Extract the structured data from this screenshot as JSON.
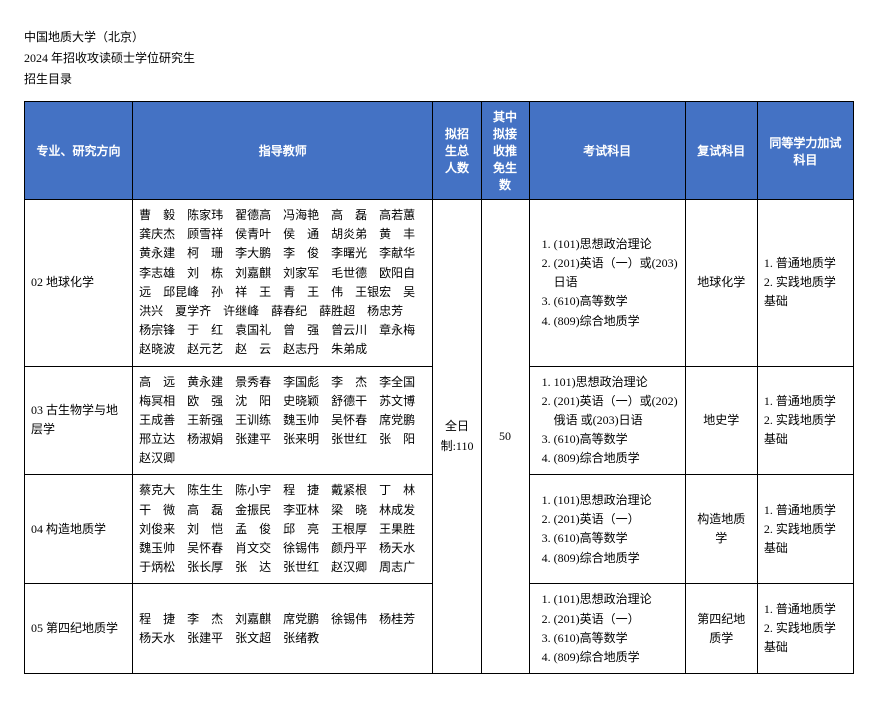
{
  "header": {
    "university": "中国地质大学（北京）",
    "year_line": "2024 年招收攻读硕士学位研究生",
    "catalog": "招生目录"
  },
  "table": {
    "columns": {
      "major": "专业、研究方向",
      "advisor": "指导教师",
      "plan": "拟招生总人数",
      "rec": "其中拟接收推免生数",
      "exam": "考试科目",
      "reexam": "复试科目",
      "equal": "同等学力加试科目"
    },
    "plan_total": "全日制:110",
    "rec_total": "50",
    "rows": [
      {
        "major": "02 地球化学",
        "advisors": "曹　毅　陈家玮　翟德高　冯海艳　高　磊　高若蕙　龚庆杰　顾雪祥　侯青叶　侯　通　胡炎弟　黄　丰　黄永建　柯　珊　李大鹏　李　俊　李曙光　李献华　李志雄　刘　栋　刘嘉麒　刘家军　毛世德　欧阳自远　邱昆峰　孙　祥　王　青　王　伟　王银宏　吴洪兴　夏学齐　许继峰　薛春纪　薛胜超　杨忠芳　杨宗锋　于　红　袁国礼　曾　强　曾云川　章永梅　赵晓波　赵元艺　赵　云　赵志丹　朱弟成",
        "exam": [
          "(101)思想政治理论",
          "(201)英语（一）或(203)日语",
          "(610)高等数学",
          "(809)综合地质学"
        ],
        "reexam": "地球化学",
        "equal": "1. 普通地质学\n2. 实践地质学基础"
      },
      {
        "major": "03 古生物学与地层学",
        "advisors": "高　远　黄永建　景秀春　李国彪　李　杰　李全国　梅冥相　欧　强　沈　阳　史晓颖　舒德干　苏文博　王成善　王新强　王训练　魏玉帅　吴怀春　席党鹏　邢立达　杨淑娟　张建平　张来明　张世红　张　阳　赵汉卿",
        "exam": [
          "101)思想政治理论",
          "(201)英语（一）或(202)俄语 或(203)日语",
          "(610)高等数学",
          "(809)综合地质学"
        ],
        "reexam": "地史学",
        "equal": "1. 普通地质学\n2. 实践地质学基础"
      },
      {
        "major": "04 构造地质学",
        "advisors": "蔡克大　陈生生　陈小宇　程　捷　戴紧根　丁　林　干　微　高　磊　金振民　李亚林　梁　晓　林成发　刘俊来　刘　恺　孟　俊　邱　亮　王根厚　王果胜　魏玉帅　吴怀春　肖文交　徐锡伟　颜丹平　杨天水　于炳松　张长厚　张　达　张世红　赵汉卿　周志广",
        "exam": [
          "(101)思想政治理论",
          "(201)英语（一）",
          "(610)高等数学",
          "(809)综合地质学"
        ],
        "reexam": "构造地质学",
        "equal": "1. 普通地质学\n2. 实践地质学基础"
      },
      {
        "major": "05 第四纪地质学",
        "advisors": "程　捷　李　杰　刘嘉麒　席党鹏　徐锡伟　杨桂芳　杨天水　张建平　张文超　张绪教",
        "exam": [
          "(101)思想政治理论",
          "(201)英语（一）",
          "(610)高等数学",
          "(809)综合地质学"
        ],
        "reexam": "第四纪地质学",
        "equal": "1. 普通地质学\n2. 实践地质学基础"
      }
    ]
  }
}
